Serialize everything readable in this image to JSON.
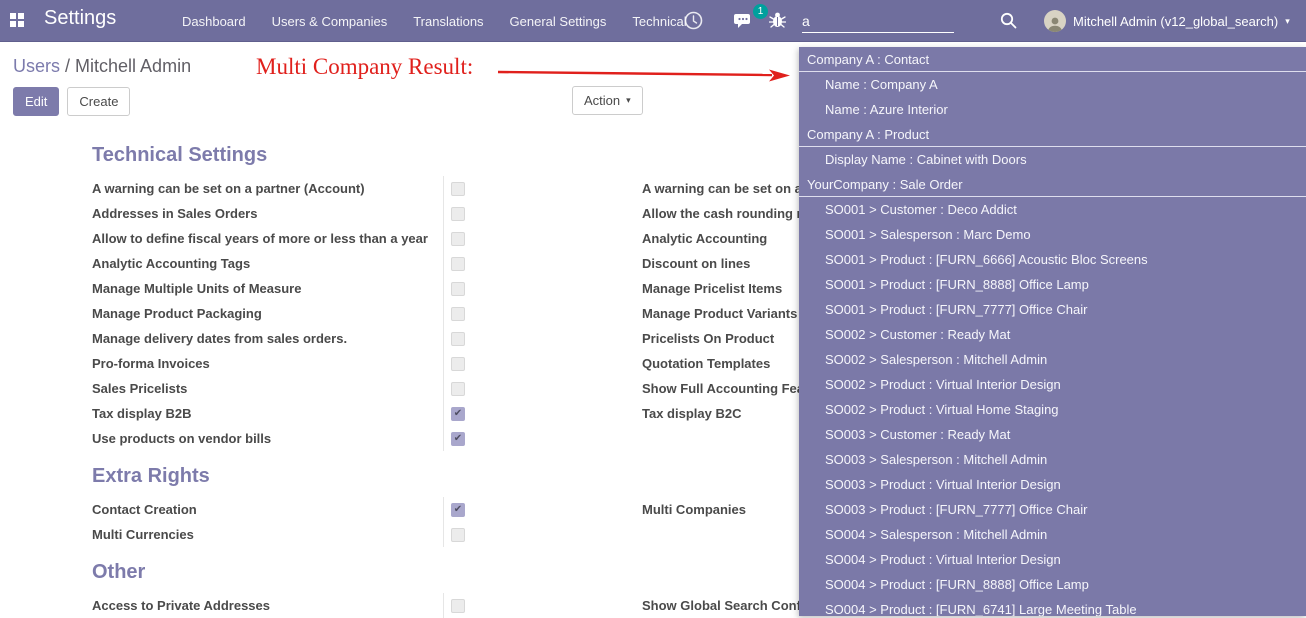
{
  "colors": {
    "navbar_bg": "#6f6e9d",
    "dropdown_bg": "#7b79a8",
    "accent_purple": "#7d7bab",
    "annotation_red": "#e0201c",
    "badge_teal": "#00a09d"
  },
  "navbar": {
    "app_title": "Settings",
    "menu_items": [
      "Dashboard",
      "Users & Companies",
      "Translations",
      "General Settings",
      "Technical"
    ],
    "icons": [
      "apps-grid-icon",
      "clock-icon",
      "messages-icon",
      "bug-icon",
      "search-icon"
    ],
    "message_badge": "1",
    "search_value": "a",
    "user_label": "Mitchell Admin (v12_global_search)"
  },
  "breadcrumb": {
    "parent": "Users",
    "separator": " / ",
    "current": "Mitchell Admin"
  },
  "annotation": {
    "text": "Multi Company Result:"
  },
  "buttons": {
    "edit": "Edit",
    "create": "Create",
    "action": "Action"
  },
  "form": {
    "sections": [
      {
        "title": "Technical Settings",
        "rows": [
          {
            "left": {
              "label": "A warning can be set on a partner (Account)",
              "checked": false
            },
            "right": {
              "label": "A warning can be set on a"
            }
          },
          {
            "left": {
              "label": "Addresses in Sales Orders",
              "checked": false
            },
            "right": {
              "label": "Allow the cash rounding m"
            }
          },
          {
            "left": {
              "label": "Allow to define fiscal years of more or less than a year",
              "checked": false
            },
            "right": {
              "label": "Analytic Accounting"
            }
          },
          {
            "left": {
              "label": "Analytic Accounting Tags",
              "checked": false
            },
            "right": {
              "label": "Discount on lines"
            }
          },
          {
            "left": {
              "label": "Manage Multiple Units of Measure",
              "checked": false
            },
            "right": {
              "label": "Manage Pricelist Items"
            }
          },
          {
            "left": {
              "label": "Manage Product Packaging",
              "checked": false
            },
            "right": {
              "label": "Manage Product Variants"
            }
          },
          {
            "left": {
              "label": "Manage delivery dates from sales orders.",
              "checked": false
            },
            "right": {
              "label": "Pricelists On Product"
            }
          },
          {
            "left": {
              "label": "Pro-forma Invoices",
              "checked": false
            },
            "right": {
              "label": "Quotation Templates"
            }
          },
          {
            "left": {
              "label": "Sales Pricelists",
              "checked": false
            },
            "right": {
              "label": "Show Full Accounting Fea"
            }
          },
          {
            "left": {
              "label": "Tax display B2B",
              "checked": true
            },
            "right": {
              "label": "Tax display B2C"
            }
          },
          {
            "left": {
              "label": "Use products on vendor bills",
              "checked": true
            },
            "right": null
          }
        ]
      },
      {
        "title": "Extra Rights",
        "rows": [
          {
            "left": {
              "label": "Contact Creation",
              "checked": true
            },
            "right": {
              "label": "Multi Companies"
            }
          },
          {
            "left": {
              "label": "Multi Currencies",
              "checked": false
            },
            "right": null
          }
        ]
      },
      {
        "title": "Other",
        "rows": [
          {
            "left": {
              "label": "Access to Private Addresses",
              "checked": false
            },
            "right": {
              "label": "Show Global Search Conf"
            }
          }
        ]
      }
    ]
  },
  "search_dropdown": {
    "items": [
      {
        "type": "header",
        "text": "Company A : Contact"
      },
      {
        "type": "item",
        "text": "Name : Company A"
      },
      {
        "type": "item",
        "text": "Name : Azure Interior"
      },
      {
        "type": "header",
        "text": "Company A : Product"
      },
      {
        "type": "item",
        "text": "Display Name : Cabinet with Doors"
      },
      {
        "type": "header",
        "text": "YourCompany : Sale Order"
      },
      {
        "type": "item",
        "text": "SO001 > Customer : Deco Addict"
      },
      {
        "type": "item",
        "text": "SO001 > Salesperson : Marc Demo"
      },
      {
        "type": "item",
        "text": "SO001 > Product : [FURN_6666] Acoustic Bloc Screens"
      },
      {
        "type": "item",
        "text": "SO001 > Product : [FURN_8888] Office Lamp"
      },
      {
        "type": "item",
        "text": "SO001 > Product : [FURN_7777] Office Chair"
      },
      {
        "type": "item",
        "text": "SO002 > Customer : Ready Mat"
      },
      {
        "type": "item",
        "text": "SO002 > Salesperson : Mitchell Admin"
      },
      {
        "type": "item",
        "text": "SO002 > Product : Virtual Interior Design"
      },
      {
        "type": "item",
        "text": "SO002 > Product : Virtual Home Staging"
      },
      {
        "type": "item",
        "text": "SO003 > Customer : Ready Mat"
      },
      {
        "type": "item",
        "text": "SO003 > Salesperson : Mitchell Admin"
      },
      {
        "type": "item",
        "text": "SO003 > Product : Virtual Interior Design"
      },
      {
        "type": "item",
        "text": "SO003 > Product : [FURN_7777] Office Chair"
      },
      {
        "type": "item",
        "text": "SO004 > Salesperson : Mitchell Admin"
      },
      {
        "type": "item",
        "text": "SO004 > Product : Virtual Interior Design"
      },
      {
        "type": "item",
        "text": "SO004 > Product : [FURN_8888] Office Lamp"
      },
      {
        "type": "item",
        "text": "SO004 > Product : [FURN_6741] Large Meeting Table"
      }
    ]
  }
}
